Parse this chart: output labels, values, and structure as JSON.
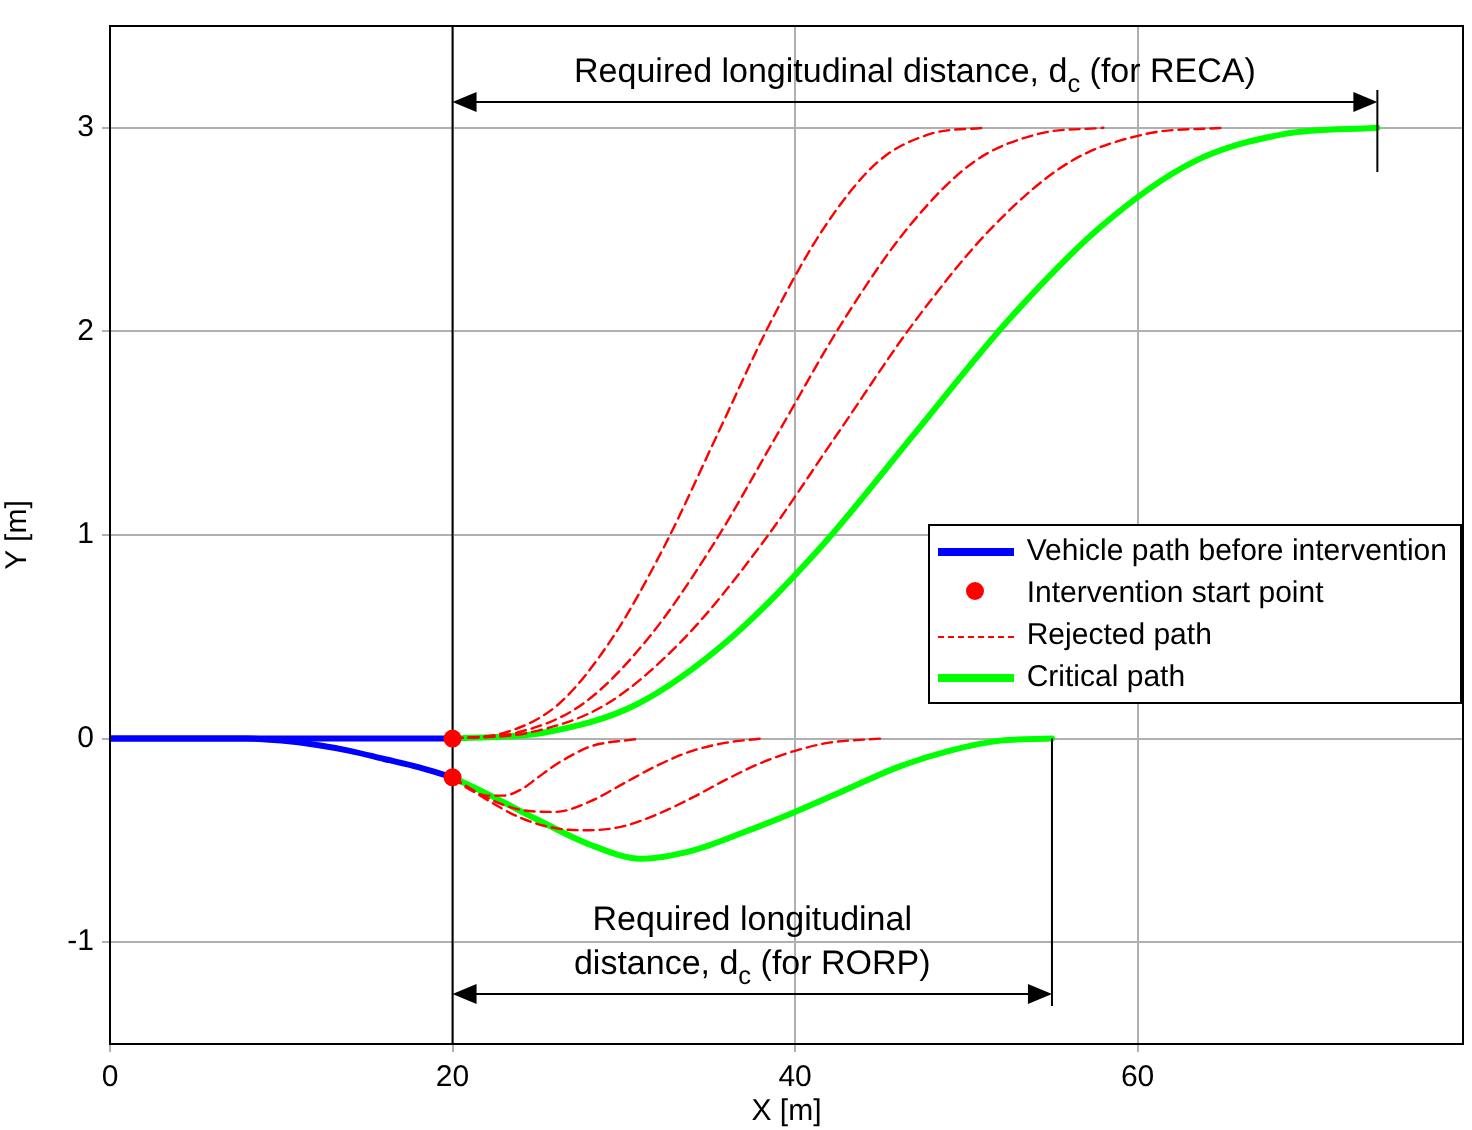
{
  "chart_data": {
    "type": "line",
    "xlabel": "X [m]",
    "ylabel": "Y [m]",
    "xlim": [
      0,
      79
    ],
    "ylim": [
      -1.5,
      3.5
    ],
    "xticks": [
      0,
      20,
      40,
      60
    ],
    "yticks": [
      -1,
      0,
      1,
      2,
      3
    ],
    "grid": true,
    "legend": "right",
    "ref_lines": [
      {
        "axis": "x",
        "value": 20,
        "color": "#000000"
      }
    ],
    "annotations": [
      "Required longitudinal distance, d$_{c}$ (for RECA)",
      "Required longitudinal\ndistance, d$_{c}$ (for RORP)"
    ],
    "series": [
      {
        "name": "Vehicle path before intervention",
        "type": "line",
        "color": "#0000ff",
        "line_style": "solid",
        "marker": "none",
        "x": [
          0,
          20
        ],
        "values": [
          0,
          0
        ]
      },
      {
        "type": "line",
        "color": "#0000ff",
        "line_style": "solid",
        "marker": "none",
        "x": [
          0,
          8,
          10,
          12,
          14,
          16,
          18,
          20
        ],
        "values": [
          0,
          0,
          -0.01,
          -0.03,
          -0.06,
          -0.1,
          -0.14,
          -0.19
        ]
      },
      {
        "name": "Intervention start point",
        "type": "scatter",
        "color": "#ff0000",
        "marker": "circle",
        "x": [
          20,
          20
        ],
        "values": [
          0,
          -0.19
        ]
      },
      {
        "name": "Rejected path",
        "type": "line",
        "color": "#ff0000",
        "line_style": "dashed",
        "marker": "none",
        "x": [
          20,
          23.1,
          26.2,
          29.3,
          32.4,
          35.5,
          38.6,
          41.7,
          44.8,
          47.9,
          51
        ],
        "values": [
          0,
          0.03,
          0.17,
          0.49,
          0.95,
          1.5,
          2.05,
          2.51,
          2.83,
          2.97,
          3
        ]
      },
      {
        "type": "line",
        "color": "#ff0000",
        "line_style": "dashed",
        "marker": "none",
        "x": [
          20,
          23.8,
          27.6,
          31.4,
          35.2,
          39,
          42.8,
          46.6,
          50.4,
          54.2,
          58
        ],
        "values": [
          0,
          0.03,
          0.17,
          0.49,
          0.95,
          1.5,
          2.05,
          2.51,
          2.83,
          2.97,
          3
        ]
      },
      {
        "type": "line",
        "color": "#ff0000",
        "line_style": "dashed",
        "marker": "none",
        "x": [
          20,
          24.5,
          29,
          33.5,
          38,
          42.5,
          47,
          51.5,
          56,
          60.5,
          65
        ],
        "values": [
          0,
          0.03,
          0.17,
          0.49,
          0.95,
          1.5,
          2.05,
          2.51,
          2.83,
          2.97,
          3
        ]
      },
      {
        "type": "line",
        "color": "#ff0000",
        "line_style": "dashed",
        "marker": "none",
        "x": [
          20,
          21,
          22,
          23,
          24,
          25,
          26,
          27,
          28,
          29,
          30,
          31
        ],
        "values": [
          -0.19,
          -0.25,
          -0.28,
          -0.28,
          -0.25,
          -0.19,
          -0.13,
          -0.08,
          -0.04,
          -0.02,
          -0.01,
          0
        ]
      },
      {
        "type": "line",
        "color": "#ff0000",
        "line_style": "dashed",
        "marker": "none",
        "x": [
          20,
          22,
          24,
          26,
          28,
          30,
          32,
          34,
          36,
          38
        ],
        "values": [
          -0.19,
          -0.29,
          -0.35,
          -0.36,
          -0.31,
          -0.22,
          -0.13,
          -0.06,
          -0.02,
          0
        ]
      },
      {
        "type": "line",
        "color": "#ff0000",
        "line_style": "dashed",
        "marker": "none",
        "x": [
          20,
          22,
          24,
          26,
          28,
          30,
          32,
          34,
          36,
          38,
          40,
          42,
          45
        ],
        "values": [
          -0.19,
          -0.3,
          -0.39,
          -0.44,
          -0.45,
          -0.43,
          -0.37,
          -0.29,
          -0.2,
          -0.12,
          -0.06,
          -0.02,
          0
        ]
      },
      {
        "name": "Critical path",
        "type": "line",
        "color": "#00ff00",
        "line_style": "solid",
        "marker": "none",
        "x": [
          20,
          25.4,
          30.8,
          36.2,
          41.6,
          47,
          52.4,
          57.8,
          63.2,
          68.6,
          74
        ],
        "values": [
          0,
          0.03,
          0.17,
          0.49,
          0.95,
          1.5,
          2.05,
          2.51,
          2.83,
          2.97,
          3
        ]
      },
      {
        "type": "line",
        "color": "#00ff00",
        "line_style": "solid",
        "marker": "none",
        "x": [
          20,
          22,
          25,
          28,
          31,
          34,
          37,
          40,
          43,
          46,
          49,
          52,
          55
        ],
        "values": [
          -0.19,
          -0.27,
          -0.4,
          -0.52,
          -0.59,
          -0.55,
          -0.46,
          -0.36,
          -0.25,
          -0.14,
          -0.06,
          -0.01,
          0
        ]
      }
    ]
  }
}
